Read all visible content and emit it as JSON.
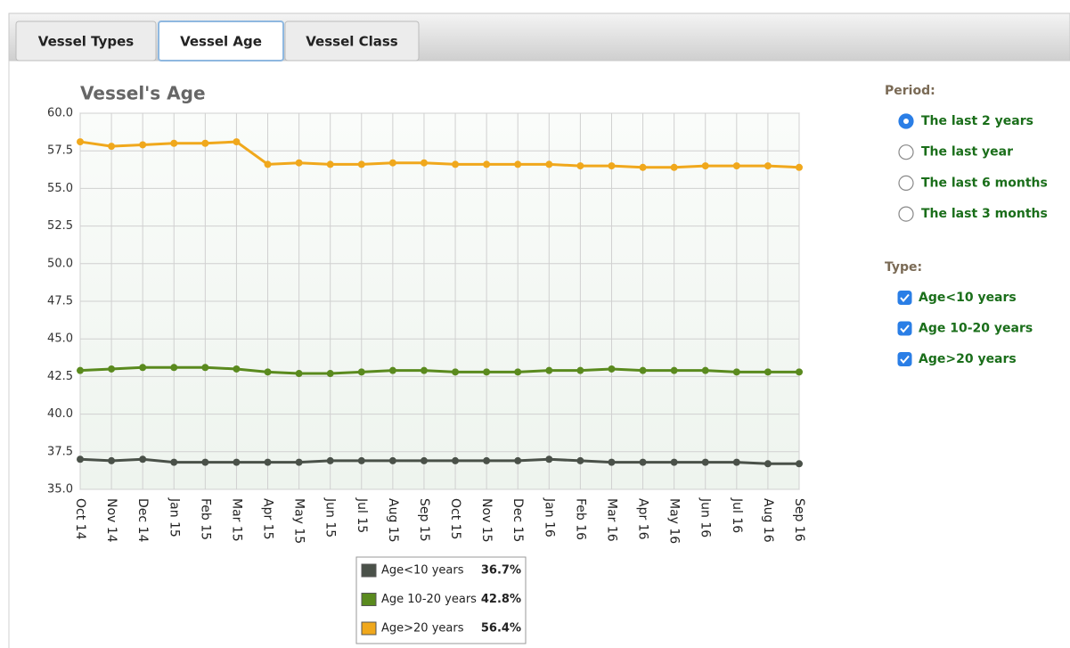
{
  "tabs": [
    "Vessel Types",
    "Vessel Age",
    "Vessel Class"
  ],
  "active_tab": 1,
  "chart_data": {
    "type": "line",
    "title": "Vessel's Age",
    "categories": [
      "Oct 14",
      "Nov 14",
      "Dec 14",
      "Jan 15",
      "Feb 15",
      "Mar 15",
      "Apr 15",
      "May 15",
      "Jun 15",
      "Jul 15",
      "Aug 15",
      "Sep 15",
      "Oct 15",
      "Nov 15",
      "Dec 15",
      "Jan 16",
      "Feb 16",
      "Mar 16",
      "Apr 16",
      "May 16",
      "Jun 16",
      "Jul 16",
      "Aug 16",
      "Sep 16"
    ],
    "series": [
      {
        "name": "Age<10 years",
        "color": "#4a5149",
        "legend_value": 36.7,
        "legend_value_label": "36.7%",
        "values": [
          37.0,
          36.9,
          37.0,
          36.8,
          36.8,
          36.8,
          36.8,
          36.8,
          36.9,
          36.9,
          36.9,
          36.9,
          36.9,
          36.9,
          36.9,
          37.0,
          36.9,
          36.8,
          36.8,
          36.8,
          36.8,
          36.8,
          36.7,
          36.7
        ]
      },
      {
        "name": "Age 10-20 years",
        "color": "#5a8a1e",
        "legend_value": 42.8,
        "legend_value_label": "42.8%",
        "values": [
          42.9,
          43.0,
          43.1,
          43.1,
          43.1,
          43.0,
          42.8,
          42.7,
          42.7,
          42.8,
          42.9,
          42.9,
          42.8,
          42.8,
          42.8,
          42.9,
          42.9,
          43.0,
          42.9,
          42.9,
          42.9,
          42.8,
          42.8,
          42.8
        ]
      },
      {
        "name": "Age>20 years",
        "color": "#f0a81c",
        "legend_value": 56.4,
        "legend_value_label": "56.4%",
        "values": [
          58.1,
          57.8,
          57.9,
          58.0,
          58.0,
          58.1,
          56.6,
          56.7,
          56.6,
          56.6,
          56.7,
          56.7,
          56.6,
          56.6,
          56.6,
          56.6,
          56.5,
          56.5,
          56.4,
          56.4,
          56.5,
          56.5,
          56.5,
          56.4
        ]
      }
    ],
    "ylim": [
      35,
      60
    ],
    "yticks": [
      {
        "value": 35,
        "label": "35.0"
      },
      37.5,
      {
        "value": 40,
        "label": "40.0"
      },
      42.5,
      {
        "value": 45,
        "label": "45.0"
      },
      47.5,
      {
        "value": 50,
        "label": "50.0"
      },
      52.5,
      {
        "value": 55,
        "label": "55.0"
      },
      57.5,
      {
        "value": 60,
        "label": "60.0"
      }
    ],
    "grid": true
  },
  "controls": {
    "period": {
      "label": "Period:",
      "options": [
        "The last 2 years",
        "The last year",
        "The last 6 months",
        "The last 3 months"
      ],
      "selected": 0
    },
    "type": {
      "label": "Type:",
      "options": [
        "Age<10 years",
        "Age 10-20 years",
        "Age>20 years"
      ],
      "checked": [
        true,
        true,
        true
      ]
    }
  }
}
